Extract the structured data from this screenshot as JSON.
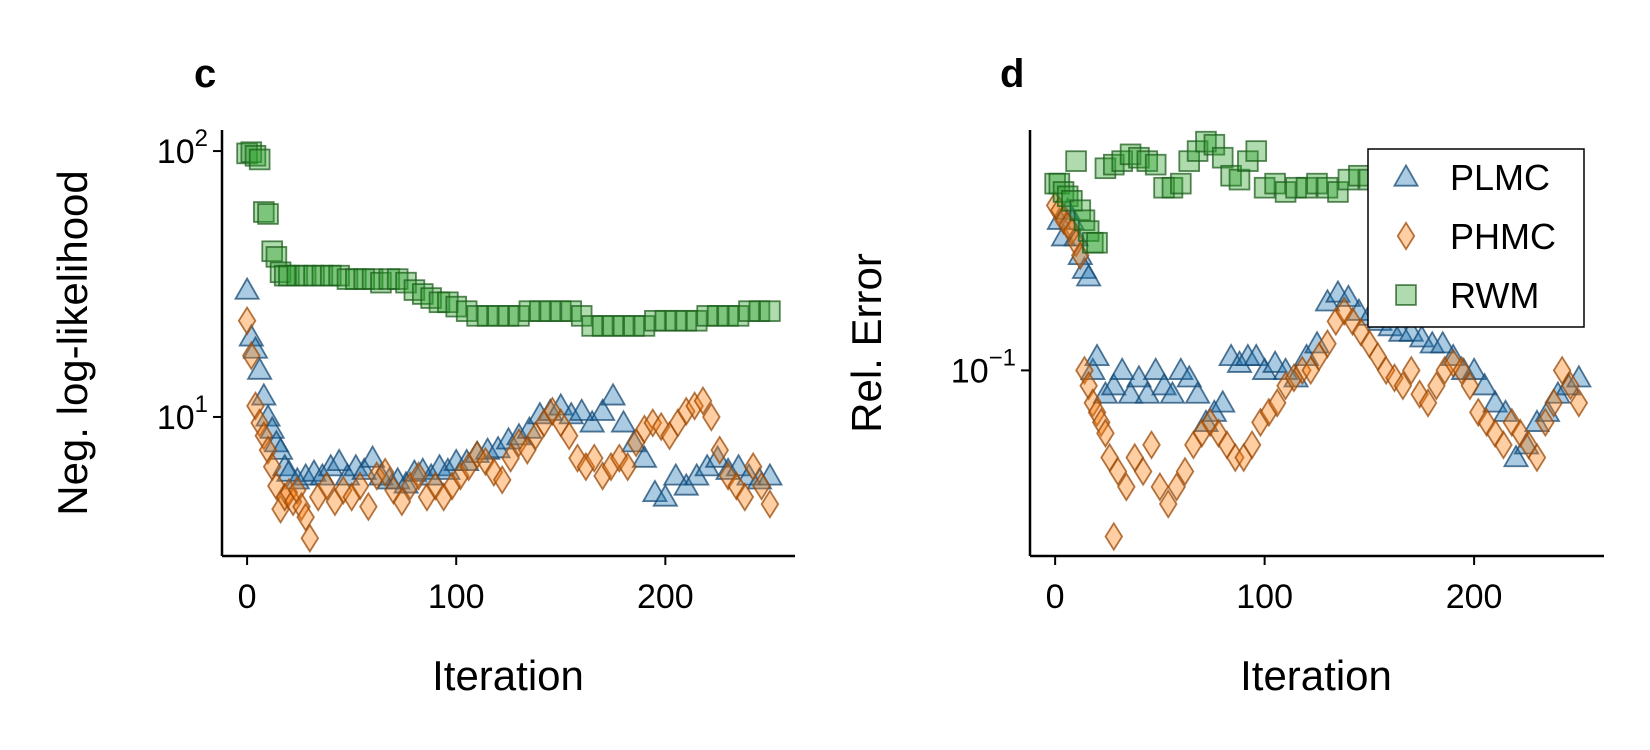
{
  "chart_data": [
    {
      "type": "scatter",
      "panel_label": "c",
      "xlabel": "Iteration",
      "ylabel": "Neg. log-likelihood",
      "xlim": [
        -12,
        262
      ],
      "ylim": [
        3.0,
        120
      ],
      "yscale": "log",
      "xticks": [
        0,
        100,
        200
      ],
      "xtick_labels": [
        "0",
        "100",
        "200"
      ],
      "yticks": [
        10,
        100
      ],
      "ytick_labels": [
        {
          "base": "10",
          "exp": "1"
        },
        {
          "base": "10",
          "exp": "2"
        }
      ],
      "grid": false,
      "legend": false,
      "series": [
        {
          "name": "PLMC",
          "marker": "triangle",
          "x": [
            0,
            2,
            4,
            6,
            8,
            10,
            12,
            14,
            16,
            18,
            20,
            24,
            28,
            32,
            36,
            40,
            44,
            48,
            52,
            56,
            60,
            64,
            68,
            72,
            76,
            80,
            84,
            88,
            92,
            96,
            100,
            105,
            110,
            115,
            120,
            125,
            130,
            135,
            140,
            145,
            150,
            155,
            160,
            165,
            170,
            175,
            180,
            185,
            190,
            195,
            200,
            205,
            210,
            215,
            220,
            225,
            230,
            235,
            240,
            245,
            250
          ],
          "y": [
            30,
            20,
            18,
            15,
            12,
            10,
            9,
            8,
            7.5,
            6.5,
            6.2,
            5.8,
            6.0,
            6.2,
            6.0,
            6.5,
            6.8,
            6.0,
            6.5,
            6.3,
            7.0,
            6.0,
            5.8,
            5.8,
            5.6,
            6.2,
            6.3,
            6.0,
            6.5,
            6.3,
            6.8,
            6.8,
            7.3,
            7.5,
            7.6,
            8.2,
            8.5,
            9.0,
            10.2,
            10.5,
            11.0,
            10.2,
            10.5,
            9.5,
            10.5,
            12.0,
            9.5,
            8.0,
            7.0,
            5.2,
            5.0,
            6.0,
            5.5,
            6.0,
            6.5,
            7.0,
            6.3,
            6.5,
            6.0,
            5.8,
            6.0
          ]
        },
        {
          "name": "PHMC",
          "marker": "diamond",
          "x": [
            0,
            2,
            4,
            6,
            8,
            10,
            12,
            14,
            16,
            18,
            20,
            22,
            24,
            26,
            28,
            30,
            34,
            38,
            42,
            46,
            50,
            54,
            58,
            62,
            66,
            70,
            74,
            78,
            82,
            86,
            90,
            94,
            98,
            102,
            106,
            110,
            114,
            118,
            122,
            126,
            130,
            134,
            138,
            142,
            146,
            150,
            154,
            158,
            162,
            166,
            170,
            174,
            178,
            182,
            186,
            190,
            194,
            198,
            202,
            206,
            210,
            214,
            218,
            222,
            226,
            230,
            234,
            238,
            242,
            246,
            250
          ],
          "y": [
            23,
            17,
            11,
            9.5,
            8.5,
            7.5,
            6.5,
            5.5,
            4.5,
            5.0,
            5.2,
            4.8,
            5.3,
            4.6,
            4.2,
            3.5,
            5.0,
            5.5,
            4.8,
            5.3,
            5.0,
            5.5,
            4.6,
            6.0,
            6.2,
            5.3,
            4.8,
            5.5,
            6.0,
            5.0,
            5.5,
            5.0,
            5.5,
            6.0,
            6.5,
            7.2,
            6.8,
            6.2,
            5.8,
            7.0,
            8.0,
            7.5,
            8.5,
            9.5,
            10.5,
            9.5,
            8.5,
            7.0,
            6.5,
            7.0,
            6.0,
            6.5,
            7.0,
            6.5,
            8.0,
            9.0,
            9.5,
            9.2,
            8.5,
            9.5,
            10.5,
            11.0,
            11.5,
            10.0,
            7.5,
            6.0,
            5.5,
            5.0,
            6.5,
            5.5,
            4.7
          ]
        },
        {
          "name": "RWM",
          "marker": "square",
          "x": [
            0,
            2,
            4,
            6,
            8,
            10,
            12,
            14,
            16,
            18,
            20,
            24,
            28,
            32,
            36,
            40,
            44,
            48,
            52,
            56,
            60,
            64,
            68,
            72,
            76,
            80,
            84,
            88,
            92,
            96,
            100,
            105,
            110,
            115,
            120,
            125,
            130,
            135,
            140,
            145,
            150,
            155,
            160,
            165,
            170,
            175,
            180,
            185,
            190,
            195,
            200,
            205,
            210,
            215,
            220,
            225,
            230,
            235,
            240,
            245,
            250
          ],
          "y": [
            98,
            99,
            96,
            93,
            59,
            58,
            42,
            40,
            35,
            34,
            34,
            34,
            34,
            34,
            34,
            34,
            34,
            33,
            33,
            33,
            33,
            32,
            33,
            33,
            32,
            30,
            29,
            28,
            27,
            27,
            26,
            25,
            24,
            24,
            24,
            24,
            24,
            25,
            25,
            25,
            25,
            25,
            24,
            22,
            22,
            22,
            22,
            22,
            22,
            23,
            23,
            23,
            23,
            23,
            24,
            24,
            24,
            24,
            25,
            25,
            25
          ]
        }
      ]
    },
    {
      "type": "scatter",
      "panel_label": "d",
      "xlabel": "Iteration",
      "ylabel": "Rel. Error",
      "xlim": [
        -12,
        262
      ],
      "ylim": [
        0.028,
        0.52
      ],
      "yscale": "log",
      "xticks": [
        0,
        100,
        200
      ],
      "xtick_labels": [
        "0",
        "100",
        "200"
      ],
      "yticks": [
        0.1
      ],
      "ytick_labels": [
        {
          "base": "10",
          "exp": "−1"
        }
      ],
      "grid": false,
      "legend": true,
      "legend_position": "top-right",
      "series": [
        {
          "name": "PLMC",
          "marker": "triangle",
          "x": [
            2,
            4,
            6,
            8,
            10,
            12,
            14,
            16,
            18,
            20,
            24,
            28,
            32,
            36,
            40,
            44,
            48,
            52,
            56,
            60,
            64,
            68,
            72,
            76,
            80,
            84,
            88,
            92,
            96,
            100,
            105,
            110,
            115,
            120,
            125,
            130,
            135,
            140,
            145,
            150,
            155,
            160,
            165,
            170,
            175,
            180,
            185,
            190,
            195,
            200,
            205,
            210,
            215,
            220,
            225,
            230,
            235,
            240,
            245,
            250
          ],
          "y": [
            0.28,
            0.25,
            0.3,
            0.28,
            0.25,
            0.22,
            0.2,
            0.19,
            0.1,
            0.11,
            0.085,
            0.09,
            0.1,
            0.085,
            0.095,
            0.085,
            0.1,
            0.09,
            0.085,
            0.1,
            0.095,
            0.085,
            0.07,
            0.075,
            0.08,
            0.11,
            0.105,
            0.11,
            0.11,
            0.1,
            0.105,
            0.1,
            0.095,
            0.11,
            0.12,
            0.16,
            0.17,
            0.165,
            0.15,
            0.145,
            0.14,
            0.135,
            0.13,
            0.13,
            0.125,
            0.12,
            0.12,
            0.11,
            0.1,
            0.1,
            0.09,
            0.08,
            0.075,
            0.055,
            0.06,
            0.07,
            0.075,
            0.085,
            0.09,
            0.095
          ]
        },
        {
          "name": "PHMC",
          "marker": "diamond",
          "x": [
            0,
            2,
            4,
            6,
            8,
            10,
            12,
            14,
            16,
            18,
            20,
            22,
            24,
            26,
            28,
            30,
            34,
            38,
            42,
            46,
            50,
            54,
            58,
            62,
            66,
            70,
            74,
            78,
            82,
            86,
            90,
            94,
            98,
            102,
            106,
            110,
            114,
            118,
            122,
            126,
            130,
            134,
            138,
            142,
            146,
            150,
            154,
            158,
            162,
            166,
            170,
            174,
            178,
            182,
            186,
            190,
            194,
            198,
            202,
            206,
            210,
            214,
            218,
            222,
            226,
            230,
            234,
            238,
            242,
            246,
            250
          ],
          "y": [
            0.31,
            0.3,
            0.28,
            0.27,
            0.26,
            0.24,
            0.22,
            0.1,
            0.09,
            0.08,
            0.075,
            0.07,
            0.065,
            0.055,
            0.032,
            0.05,
            0.045,
            0.055,
            0.05,
            0.06,
            0.045,
            0.04,
            0.045,
            0.05,
            0.06,
            0.065,
            0.07,
            0.065,
            0.06,
            0.055,
            0.055,
            0.06,
            0.07,
            0.075,
            0.08,
            0.09,
            0.095,
            0.1,
            0.1,
            0.11,
            0.12,
            0.14,
            0.15,
            0.14,
            0.13,
            0.12,
            0.11,
            0.1,
            0.095,
            0.09,
            0.1,
            0.085,
            0.08,
            0.09,
            0.1,
            0.105,
            0.1,
            0.09,
            0.075,
            0.07,
            0.065,
            0.06,
            0.07,
            0.065,
            0.06,
            0.055,
            0.07,
            0.08,
            0.1,
            0.09,
            0.08
          ]
        },
        {
          "name": "RWM",
          "marker": "square",
          "x": [
            0,
            2,
            4,
            6,
            8,
            10,
            12,
            14,
            16,
            18,
            20,
            24,
            28,
            32,
            36,
            40,
            44,
            48,
            52,
            56,
            60,
            64,
            68,
            72,
            76,
            80,
            84,
            88,
            92,
            96,
            100,
            105,
            110,
            115,
            120,
            125,
            130,
            135,
            140,
            145,
            150,
            155,
            160,
            165,
            170,
            175,
            180,
            185,
            190,
            195,
            200
          ],
          "y": [
            0.36,
            0.36,
            0.34,
            0.33,
            0.32,
            0.42,
            0.3,
            0.28,
            0.26,
            0.24,
            0.24,
            0.4,
            0.41,
            0.42,
            0.44,
            0.43,
            0.42,
            0.41,
            0.35,
            0.35,
            0.36,
            0.42,
            0.45,
            0.48,
            0.47,
            0.43,
            0.38,
            0.37,
            0.42,
            0.45,
            0.35,
            0.36,
            0.34,
            0.35,
            0.35,
            0.36,
            0.35,
            0.34,
            0.37,
            0.38,
            0.37,
            0.36,
            0.38,
            0.38,
            0.37,
            0.36,
            0.37,
            0.38,
            0.38,
            0.37,
            0.38
          ]
        }
      ]
    }
  ],
  "colors": {
    "PLMC": {
      "fill": "#1f77b4",
      "edge": "#174a74"
    },
    "PHMC": {
      "fill": "#ff7f0e",
      "edge": "#9a4a08"
    },
    "RWM": {
      "fill": "#2ca02c",
      "edge": "#1d5f1d"
    }
  }
}
